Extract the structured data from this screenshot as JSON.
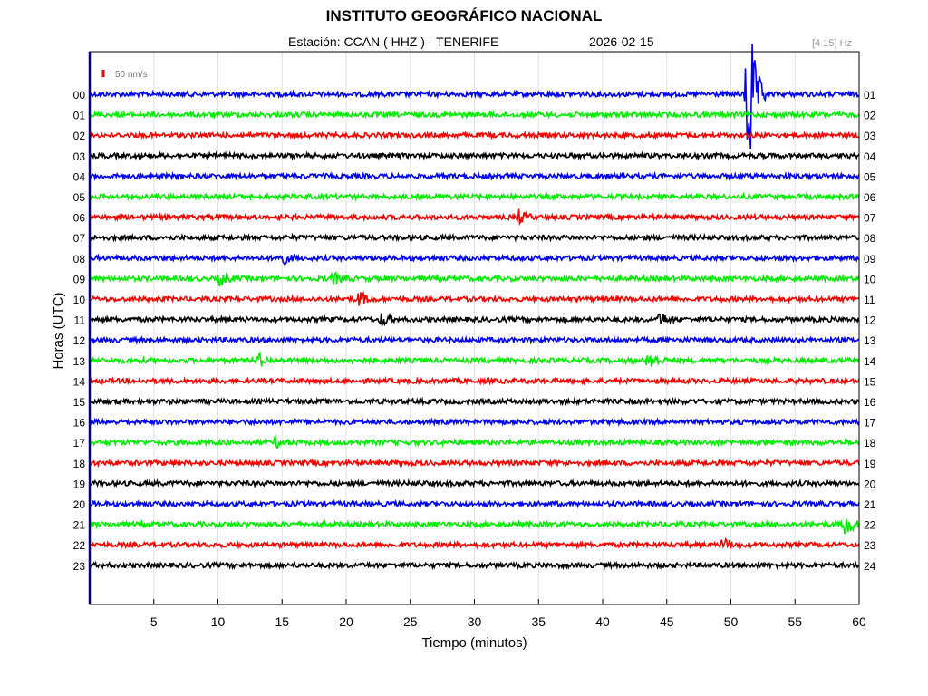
{
  "header": {
    "title": "INSTITUTO GEOGRÁFICO NACIONAL",
    "station": "Estación:  CCAN ( HHZ ) - TENERIFE",
    "date": "2026-02-15",
    "filter": "[4 15] Hz"
  },
  "chart_data": {
    "type": "line",
    "title": "INSTITUTO GEOGRÁFICO NACIONAL",
    "xlabel": "Tiempo (minutos)",
    "ylabel": "Horas (UTC)",
    "xlim": [
      0,
      60
    ],
    "x_ticks": [
      5,
      10,
      15,
      20,
      25,
      30,
      35,
      40,
      45,
      50,
      55,
      60
    ],
    "left_hour_labels": [
      "00",
      "01",
      "02",
      "03",
      "04",
      "05",
      "06",
      "07",
      "08",
      "09",
      "10",
      "11",
      "12",
      "13",
      "14",
      "15",
      "16",
      "17",
      "18",
      "19",
      "20",
      "21",
      "22",
      "23"
    ],
    "right_hour_labels": [
      "01",
      "02",
      "03",
      "04",
      "05",
      "06",
      "07",
      "08",
      "09",
      "10",
      "11",
      "12",
      "13",
      "14",
      "15",
      "16",
      "17",
      "18",
      "19",
      "20",
      "21",
      "22",
      "23",
      "24"
    ],
    "trace_colors": [
      "#0000ff",
      "#00ee00",
      "#ff0000",
      "#000000"
    ],
    "scale_label": "50 nm/s",
    "scale_color": "#ff0000",
    "grid": true,
    "events": [
      {
        "hour": 0,
        "minute": 51.3,
        "relative_amplitude": 14
      },
      {
        "hour": 6,
        "minute": 33.4,
        "relative_amplitude": 0.9
      },
      {
        "hour": 8,
        "minute": 14.8,
        "relative_amplitude": 1.2
      },
      {
        "hour": 9,
        "minute": 10.2,
        "relative_amplitude": 0.9
      },
      {
        "hour": 9,
        "minute": 19.0,
        "relative_amplitude": 0.7
      },
      {
        "hour": 10,
        "minute": 21.0,
        "relative_amplitude": 1.0
      },
      {
        "hour": 11,
        "minute": 22.8,
        "relative_amplitude": 0.9
      },
      {
        "hour": 11,
        "minute": 44.5,
        "relative_amplitude": 0.8
      },
      {
        "hour": 13,
        "minute": 13.2,
        "relative_amplitude": 0.8
      },
      {
        "hour": 13,
        "minute": 43.6,
        "relative_amplitude": 1.5
      },
      {
        "hour": 17,
        "minute": 14.5,
        "relative_amplitude": 0.6
      },
      {
        "hour": 21,
        "minute": 58.9,
        "relative_amplitude": 1.8
      },
      {
        "hour": 22,
        "minute": 49.4,
        "relative_amplitude": 0.8
      }
    ]
  }
}
